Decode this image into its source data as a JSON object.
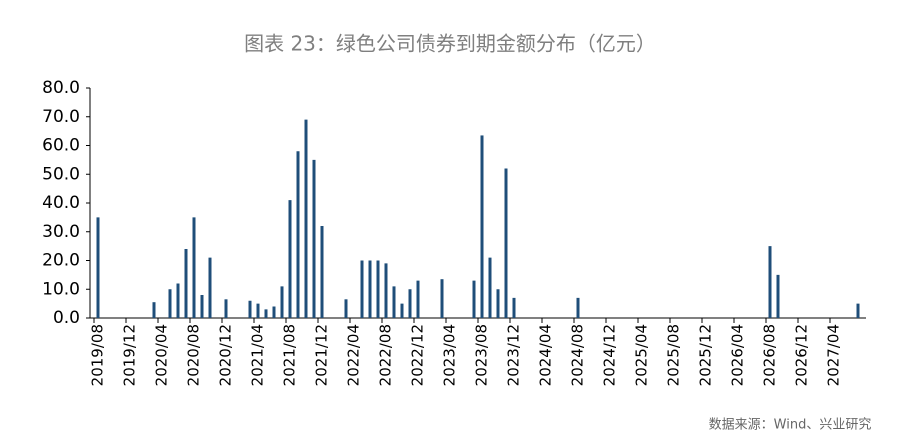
{
  "chart_data": {
    "type": "bar",
    "title": "图表 23：绿色公司债券到期金额分布（亿元）",
    "source": "数据来源：Wind、兴业研究",
    "color": "#1f4e79",
    "categories": [
      "2019/08",
      null,
      null,
      null,
      "2019/12",
      null,
      null,
      null,
      "2020/04",
      null,
      null,
      null,
      "2020/08",
      null,
      null,
      null,
      "2020/12",
      null,
      null,
      null,
      "2021/04",
      null,
      null,
      null,
      "2021/08",
      null,
      null,
      null,
      "2021/12",
      null,
      null,
      null,
      "2022/04",
      null,
      null,
      null,
      "2022/08",
      null,
      null,
      null,
      "2022/12",
      null,
      null,
      null,
      "2023/04",
      null,
      null,
      null,
      "2023/08",
      null,
      null,
      null,
      "2023/12",
      null,
      null,
      null,
      "2024/04",
      null,
      null,
      null,
      "2024/08",
      null,
      null,
      null,
      "2024/12",
      null,
      null,
      null,
      "2025/04",
      null,
      null,
      null,
      "2025/08",
      null,
      null,
      null,
      "2025/12",
      null,
      null,
      null,
      "2026/04",
      null,
      null,
      null,
      "2026/08",
      null,
      null,
      null,
      "2026/12",
      null,
      null,
      null,
      "2027/04",
      null,
      null,
      null,
      null
    ],
    "values": [
      35,
      0,
      0,
      0,
      0,
      0,
      0,
      5.5,
      0,
      10,
      12,
      24,
      35,
      8,
      21,
      0,
      6.5,
      0,
      0,
      6,
      5,
      3,
      4,
      11,
      41,
      58,
      69,
      55,
      32,
      0,
      0,
      6.5,
      0,
      20,
      20,
      20,
      19,
      11,
      5,
      10,
      13,
      0,
      0,
      13.5,
      0,
      0,
      0,
      13,
      63.5,
      21,
      10,
      52,
      7,
      0,
      0,
      0,
      0,
      0,
      0,
      0,
      7,
      0,
      0,
      0,
      0,
      0,
      0,
      0,
      0,
      0,
      0,
      0,
      0,
      0,
      0,
      0,
      0,
      0,
      0,
      0,
      0,
      0,
      0,
      0,
      25,
      15,
      0,
      0,
      0,
      0,
      0,
      0,
      0,
      0,
      0,
      5,
      0
    ],
    "ylim": [
      0,
      80
    ],
    "yticks": [
      {
        "value": 0,
        "label": "0.0"
      },
      {
        "value": 10,
        "label": "10.0"
      },
      {
        "value": 20,
        "label": "20.0"
      },
      {
        "value": 30,
        "label": "30.0"
      },
      {
        "value": 40,
        "label": "40.0"
      },
      {
        "value": 50,
        "label": "50.0"
      },
      {
        "value": 60,
        "label": "60.0"
      },
      {
        "value": 70,
        "label": "70.0"
      },
      {
        "value": 80,
        "label": "80.0"
      }
    ],
    "grid": false
  }
}
